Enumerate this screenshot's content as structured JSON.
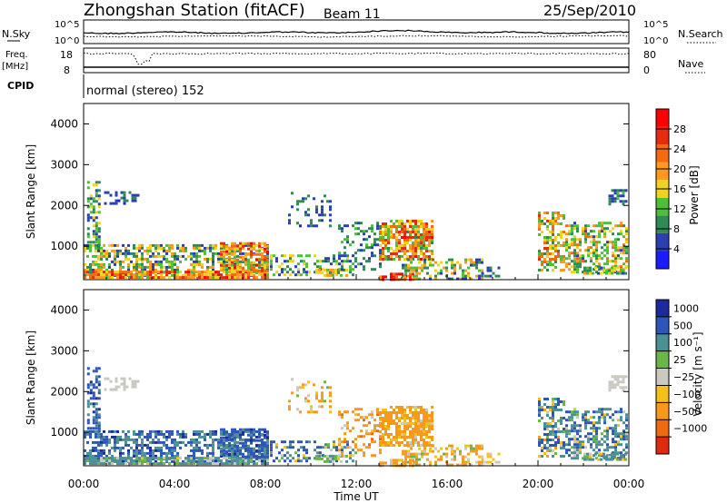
{
  "header": {
    "station_title": "Zhongshan Station (fitACF)",
    "beam_label": "Beam 11",
    "date": "25/Sep/2010"
  },
  "top_panel": {
    "left_label": "N.Sky",
    "right_label": "N.Search",
    "scale_top": "10^5",
    "scale_bottom": "10^0"
  },
  "freq_panel": {
    "left_label_line1": "Freq.",
    "left_label_line2": "[MHz]",
    "left_ticks": [
      "18",
      "8"
    ],
    "right_label": "Nave",
    "right_ticks": [
      "80",
      "0"
    ]
  },
  "cpid": {
    "label": "CPID",
    "text": "normal (stereo) 152"
  },
  "x_axis": {
    "label": "Time UT",
    "ticks": [
      "00:00",
      "04:00",
      "08:00",
      "12:00",
      "16:00",
      "20:00",
      "00:00"
    ]
  },
  "power_colorbar": {
    "label": "Power [dB]",
    "ticks": [
      "4",
      "8",
      "12",
      "16",
      "20",
      "24",
      "28"
    ],
    "colors": [
      "#1b1bff",
      "#2a3fb0",
      "#2f8a55",
      "#4fbf3a",
      "#f2d21c",
      "#ff9a1e",
      "#f36a10",
      "#e82a10",
      "#ff0000"
    ]
  },
  "velocity_colorbar": {
    "label": "Velocity [m s⁻¹]",
    "ticks": [
      "1000",
      "500",
      "100",
      "25",
      "−25",
      "−100",
      "−500",
      "−1000"
    ],
    "colors": [
      "#1c2a9e",
      "#2d56b8",
      "#4c8f95",
      "#6ab648",
      "#c9c9c0",
      "#f6c01a",
      "#f79a1c",
      "#f06a10",
      "#e02a10"
    ]
  },
  "chart_data": [
    {
      "type": "heatmap",
      "title": "Power",
      "xlabel": "Time UT",
      "ylabel": "Slant Range [km]",
      "x_range": [
        "00:00",
        "24:00"
      ],
      "ylim": [
        180,
        4500
      ],
      "y_ticks": [
        1000,
        2000,
        3000,
        4000
      ],
      "colorbar_range": [
        0,
        30
      ],
      "colorbar_unit": "dB",
      "blobs": [
        {
          "t0": 0.0,
          "t1": 8.1,
          "r0": 300,
          "r1": 1050,
          "density": 0.55,
          "value": 12,
          "spread": 8
        },
        {
          "t0": 0.0,
          "t1": 8.1,
          "r0": 250,
          "r1": 400,
          "density": 0.8,
          "value": 20,
          "spread": 8
        },
        {
          "t0": 0.15,
          "t1": 0.75,
          "r0": 1000,
          "r1": 2600,
          "density": 0.5,
          "value": 10,
          "spread": 6
        },
        {
          "t0": 0.9,
          "t1": 2.4,
          "r0": 2050,
          "r1": 2350,
          "density": 0.35,
          "value": 6,
          "spread": 3
        },
        {
          "t0": 6.0,
          "t1": 8.1,
          "r0": 400,
          "r1": 1100,
          "density": 0.6,
          "value": 20,
          "spread": 8
        },
        {
          "t0": 9.0,
          "t1": 10.9,
          "r0": 1500,
          "r1": 2400,
          "density": 0.28,
          "value": 6,
          "spread": 3
        },
        {
          "t0": 8.2,
          "t1": 12.0,
          "r0": 300,
          "r1": 800,
          "density": 0.3,
          "value": 10,
          "spread": 6
        },
        {
          "t0": 10.2,
          "t1": 11.6,
          "r0": 300,
          "r1": 450,
          "density": 0.7,
          "value": 14,
          "spread": 6
        },
        {
          "t0": 11.2,
          "t1": 13.0,
          "r0": 400,
          "r1": 1600,
          "density": 0.3,
          "value": 8,
          "spread": 4
        },
        {
          "t0": 13.0,
          "t1": 15.3,
          "r0": 700,
          "r1": 1650,
          "density": 0.7,
          "value": 18,
          "spread": 9
        },
        {
          "t0": 14.0,
          "t1": 17.5,
          "r0": 200,
          "r1": 700,
          "density": 0.45,
          "value": 12,
          "spread": 8
        },
        {
          "t0": 13.0,
          "t1": 14.5,
          "r0": 200,
          "r1": 350,
          "density": 0.6,
          "value": 24,
          "spread": 6
        },
        {
          "t0": 17.5,
          "t1": 18.3,
          "r0": 250,
          "r1": 500,
          "density": 0.3,
          "value": 6,
          "spread": 3
        },
        {
          "t0": 20.0,
          "t1": 21.2,
          "r0": 400,
          "r1": 1850,
          "density": 0.55,
          "value": 16,
          "spread": 8
        },
        {
          "t0": 21.2,
          "t1": 23.9,
          "r0": 350,
          "r1": 1600,
          "density": 0.5,
          "value": 14,
          "spread": 8
        },
        {
          "t0": 23.1,
          "t1": 23.9,
          "r0": 2050,
          "r1": 2400,
          "density": 0.6,
          "value": 8,
          "spread": 4
        },
        {
          "t0": 22.0,
          "t1": 23.9,
          "r0": 300,
          "r1": 500,
          "density": 0.6,
          "value": 12,
          "spread": 6
        }
      ]
    },
    {
      "type": "heatmap",
      "title": "Velocity",
      "xlabel": "Time UT",
      "ylabel": "Slant Range [km]",
      "x_range": [
        "00:00",
        "24:00"
      ],
      "ylim": [
        180,
        4500
      ],
      "y_ticks": [
        1000,
        2000,
        3000,
        4000
      ],
      "colorbar_unit": "m s-1",
      "blobs": [
        {
          "t0": 0.0,
          "t1": 8.1,
          "r0": 300,
          "r1": 1050,
          "density": 0.55,
          "value": 600,
          "spread": 500
        },
        {
          "t0": 0.0,
          "t1": 8.1,
          "r0": 250,
          "r1": 400,
          "density": 0.8,
          "value": 150,
          "spread": 200
        },
        {
          "t0": 0.15,
          "t1": 0.75,
          "r0": 1000,
          "r1": 2600,
          "density": 0.5,
          "value": 700,
          "spread": 400
        },
        {
          "t0": 0.9,
          "t1": 2.4,
          "r0": 2050,
          "r1": 2350,
          "density": 0.35,
          "value": 0,
          "spread": 20
        },
        {
          "t0": 6.0,
          "t1": 8.1,
          "r0": 400,
          "r1": 1100,
          "density": 0.6,
          "value": 700,
          "spread": 400
        },
        {
          "t0": 9.0,
          "t1": 10.9,
          "r0": 1500,
          "r1": 2400,
          "density": 0.28,
          "value": -150,
          "spread": 200
        },
        {
          "t0": 8.2,
          "t1": 12.0,
          "r0": 300,
          "r1": 800,
          "density": 0.3,
          "value": 400,
          "spread": 500
        },
        {
          "t0": 10.2,
          "t1": 11.6,
          "r0": 300,
          "r1": 450,
          "density": 0.7,
          "value": 50,
          "spread": 100
        },
        {
          "t0": 11.2,
          "t1": 13.0,
          "r0": 400,
          "r1": 1600,
          "density": 0.3,
          "value": -300,
          "spread": 300
        },
        {
          "t0": 13.0,
          "t1": 15.3,
          "r0": 700,
          "r1": 1650,
          "density": 0.7,
          "value": -250,
          "spread": 250
        },
        {
          "t0": 14.0,
          "t1": 17.5,
          "r0": 200,
          "r1": 700,
          "density": 0.45,
          "value": -100,
          "spread": 150
        },
        {
          "t0": 13.0,
          "t1": 14.5,
          "r0": 200,
          "r1": 350,
          "density": 0.6,
          "value": -200,
          "spread": 200
        },
        {
          "t0": 17.5,
          "t1": 18.3,
          "r0": 250,
          "r1": 500,
          "density": 0.3,
          "value": -50,
          "spread": 60
        },
        {
          "t0": 20.0,
          "t1": 21.2,
          "r0": 400,
          "r1": 1850,
          "density": 0.55,
          "value": 300,
          "spread": 500
        },
        {
          "t0": 21.2,
          "t1": 23.9,
          "r0": 350,
          "r1": 1600,
          "density": 0.5,
          "value": 400,
          "spread": 500
        },
        {
          "t0": 23.1,
          "t1": 23.9,
          "r0": 2050,
          "r1": 2400,
          "density": 0.6,
          "value": 0,
          "spread": 20
        },
        {
          "t0": 22.0,
          "t1": 23.9,
          "r0": 300,
          "r1": 500,
          "density": 0.6,
          "value": 150,
          "spread": 200
        }
      ]
    }
  ]
}
